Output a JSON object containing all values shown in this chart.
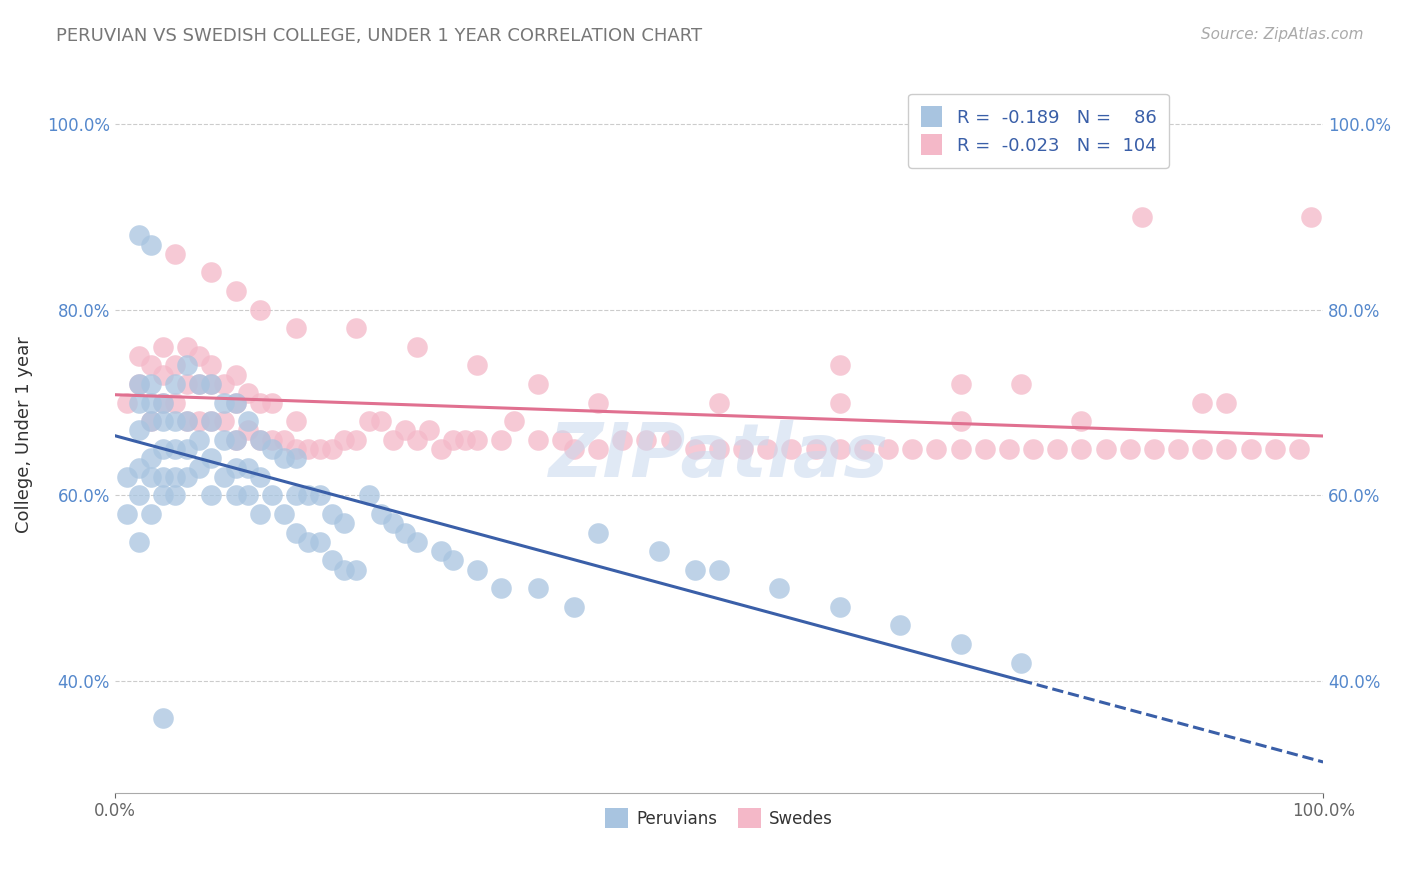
{
  "title": "PERUVIAN VS SWEDISH COLLEGE, UNDER 1 YEAR CORRELATION CHART",
  "source": "Source: ZipAtlas.com",
  "ylabel": "College, Under 1 year",
  "peruvian_color": "#a8c4e0",
  "swedish_color": "#f4b8c8",
  "peruvian_line_color": "#3a5fa8",
  "swedish_line_color": "#e07090",
  "background_color": "#ffffff",
  "grid_color": "#cccccc",
  "peruvian_label": "Peruvians",
  "swedish_label": "Swedes",
  "legend_text_color": "#3a5fa8",
  "watermark": "ZIPatlas",
  "peruvian_x": [
    0.01,
    0.01,
    0.02,
    0.02,
    0.02,
    0.02,
    0.02,
    0.02,
    0.03,
    0.03,
    0.03,
    0.03,
    0.03,
    0.03,
    0.04,
    0.04,
    0.04,
    0.04,
    0.04,
    0.05,
    0.05,
    0.05,
    0.05,
    0.05,
    0.06,
    0.06,
    0.06,
    0.06,
    0.07,
    0.07,
    0.07,
    0.08,
    0.08,
    0.08,
    0.08,
    0.09,
    0.09,
    0.09,
    0.1,
    0.1,
    0.1,
    0.1,
    0.11,
    0.11,
    0.11,
    0.12,
    0.12,
    0.12,
    0.13,
    0.13,
    0.14,
    0.14,
    0.15,
    0.15,
    0.15,
    0.16,
    0.16,
    0.17,
    0.17,
    0.18,
    0.18,
    0.19,
    0.19,
    0.2,
    0.21,
    0.22,
    0.23,
    0.24,
    0.25,
    0.27,
    0.28,
    0.3,
    0.32,
    0.35,
    0.38,
    0.4,
    0.45,
    0.48,
    0.5,
    0.55,
    0.6,
    0.65,
    0.7,
    0.75,
    0.02,
    0.03,
    0.04
  ],
  "peruvian_y": [
    0.58,
    0.62,
    0.55,
    0.6,
    0.63,
    0.67,
    0.7,
    0.72,
    0.58,
    0.62,
    0.64,
    0.68,
    0.7,
    0.72,
    0.6,
    0.62,
    0.65,
    0.68,
    0.7,
    0.6,
    0.62,
    0.65,
    0.68,
    0.72,
    0.62,
    0.65,
    0.68,
    0.74,
    0.63,
    0.66,
    0.72,
    0.6,
    0.64,
    0.68,
    0.72,
    0.62,
    0.66,
    0.7,
    0.6,
    0.63,
    0.66,
    0.7,
    0.6,
    0.63,
    0.68,
    0.58,
    0.62,
    0.66,
    0.6,
    0.65,
    0.58,
    0.64,
    0.56,
    0.6,
    0.64,
    0.55,
    0.6,
    0.55,
    0.6,
    0.53,
    0.58,
    0.52,
    0.57,
    0.52,
    0.6,
    0.58,
    0.57,
    0.56,
    0.55,
    0.54,
    0.53,
    0.52,
    0.5,
    0.5,
    0.48,
    0.56,
    0.54,
    0.52,
    0.52,
    0.5,
    0.48,
    0.46,
    0.44,
    0.42,
    0.88,
    0.87,
    0.36
  ],
  "swedish_x": [
    0.01,
    0.02,
    0.02,
    0.03,
    0.03,
    0.04,
    0.04,
    0.04,
    0.05,
    0.05,
    0.06,
    0.06,
    0.06,
    0.07,
    0.07,
    0.07,
    0.08,
    0.08,
    0.08,
    0.09,
    0.09,
    0.1,
    0.1,
    0.1,
    0.11,
    0.11,
    0.12,
    0.12,
    0.13,
    0.13,
    0.14,
    0.15,
    0.15,
    0.16,
    0.17,
    0.18,
    0.19,
    0.2,
    0.21,
    0.22,
    0.23,
    0.24,
    0.25,
    0.26,
    0.27,
    0.28,
    0.29,
    0.3,
    0.32,
    0.33,
    0.35,
    0.37,
    0.38,
    0.4,
    0.42,
    0.44,
    0.46,
    0.48,
    0.5,
    0.52,
    0.54,
    0.56,
    0.58,
    0.6,
    0.62,
    0.64,
    0.66,
    0.68,
    0.7,
    0.72,
    0.74,
    0.76,
    0.78,
    0.8,
    0.82,
    0.84,
    0.86,
    0.88,
    0.9,
    0.92,
    0.94,
    0.96,
    0.98,
    0.99,
    0.05,
    0.08,
    0.1,
    0.12,
    0.15,
    0.2,
    0.25,
    0.3,
    0.35,
    0.4,
    0.5,
    0.6,
    0.7,
    0.8,
    0.9,
    0.92,
    0.6,
    0.7,
    0.75,
    0.85
  ],
  "swedish_y": [
    0.7,
    0.72,
    0.75,
    0.68,
    0.74,
    0.7,
    0.73,
    0.76,
    0.7,
    0.74,
    0.68,
    0.72,
    0.76,
    0.68,
    0.72,
    0.75,
    0.68,
    0.72,
    0.74,
    0.68,
    0.72,
    0.66,
    0.7,
    0.73,
    0.67,
    0.71,
    0.66,
    0.7,
    0.66,
    0.7,
    0.66,
    0.65,
    0.68,
    0.65,
    0.65,
    0.65,
    0.66,
    0.66,
    0.68,
    0.68,
    0.66,
    0.67,
    0.66,
    0.67,
    0.65,
    0.66,
    0.66,
    0.66,
    0.66,
    0.68,
    0.66,
    0.66,
    0.65,
    0.65,
    0.66,
    0.66,
    0.66,
    0.65,
    0.65,
    0.65,
    0.65,
    0.65,
    0.65,
    0.65,
    0.65,
    0.65,
    0.65,
    0.65,
    0.65,
    0.65,
    0.65,
    0.65,
    0.65,
    0.65,
    0.65,
    0.65,
    0.65,
    0.65,
    0.65,
    0.65,
    0.65,
    0.65,
    0.65,
    0.9,
    0.86,
    0.84,
    0.82,
    0.8,
    0.78,
    0.78,
    0.76,
    0.74,
    0.72,
    0.7,
    0.7,
    0.7,
    0.68,
    0.68,
    0.7,
    0.7,
    0.74,
    0.72,
    0.72,
    0.9
  ],
  "xlim": [
    0.0,
    1.0
  ],
  "ylim": [
    0.28,
    1.05
  ],
  "yticks": [
    0.4,
    0.6,
    0.8,
    1.0
  ],
  "ytick_labels": [
    "40.0%",
    "60.0%",
    "80.0%",
    "100.0%"
  ],
  "xticks": [
    0.0,
    1.0
  ],
  "xtick_labels": [
    "0.0%",
    "100.0%"
  ],
  "peruvian_line_x0": 0.0,
  "peruvian_line_x1": 0.75,
  "peruvian_line_dash_x1": 1.0,
  "swedish_line_x0": 0.0,
  "swedish_line_x1": 1.0
}
